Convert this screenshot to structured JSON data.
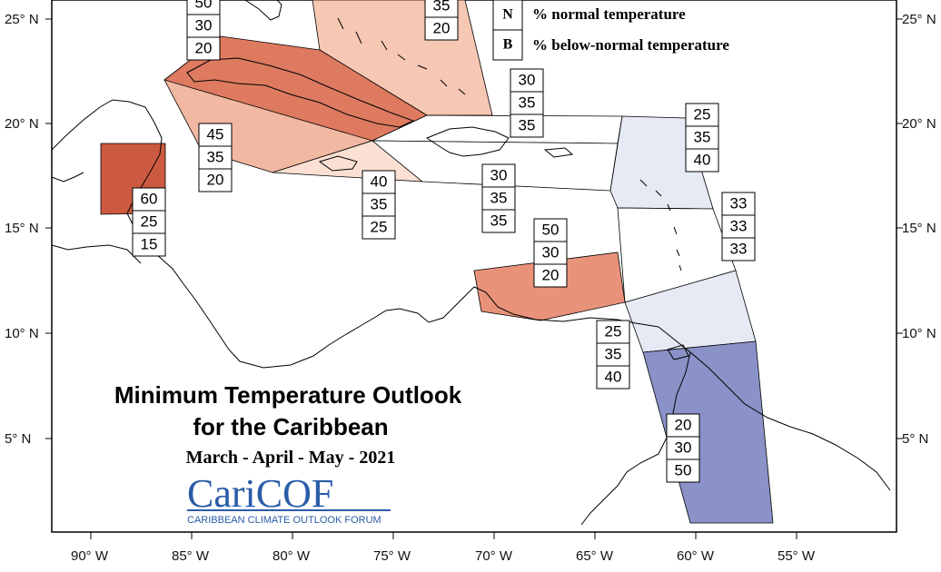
{
  "map": {
    "title_line1": "Minimum Temperature Outlook",
    "title_line2": "for the Caribbean",
    "season": "March - April - May - 2021",
    "logo_text": "CariCOF",
    "logo_subtitle": "CARIBBEAN CLIMATE OUTLOOK FORUM",
    "legend": [
      {
        "key": "N",
        "label": "% normal temperature"
      },
      {
        "key": "B",
        "label": "% below-normal temperature"
      }
    ],
    "lat_labels": [
      "25° N",
      "20° N",
      "15° N",
      "10° N",
      "5° N"
    ],
    "lon_labels": [
      "90° W",
      "85° W",
      "80° W",
      "75° W",
      "70° W",
      "65° W",
      "60° W",
      "55° W"
    ],
    "colors": {
      "above_60": "#cc5a40",
      "above_50": "#e8927a",
      "above_50_cuba": "#dd7a60",
      "above_45": "#f2b9a2",
      "above_40": "#fbe0d3",
      "below_40": "#e6eaf5",
      "below_50": "#8a92c8",
      "neutral": "#ffffff",
      "coast": "#000000"
    },
    "zones": [
      {
        "id": "bahamas",
        "probabilities": [
          "35",
          "20"
        ],
        "hidden_top": true
      },
      {
        "id": "cuba",
        "probabilities": [
          "50",
          "30",
          "20"
        ]
      },
      {
        "id": "western-caribbean",
        "probabilities": [
          "45",
          "35",
          "20"
        ]
      },
      {
        "id": "belize",
        "probabilities": [
          "60",
          "25",
          "15"
        ]
      },
      {
        "id": "jamaica",
        "probabilities": [
          "40",
          "35",
          "25"
        ]
      },
      {
        "id": "turks-caicos",
        "probabilities": [
          "30",
          "35",
          "35"
        ]
      },
      {
        "id": "hispaniola-pr",
        "probabilities": [
          "30",
          "35",
          "35"
        ]
      },
      {
        "id": "leeward-islands",
        "probabilities": [
          "25",
          "35",
          "40"
        ]
      },
      {
        "id": "windward-islands",
        "probabilities": [
          "33",
          "33",
          "33"
        ]
      },
      {
        "id": "abc-islands",
        "probabilities": [
          "50",
          "30",
          "20"
        ]
      },
      {
        "id": "trinidad",
        "probabilities": [
          "25",
          "35",
          "40"
        ]
      },
      {
        "id": "guianas",
        "probabilities": [
          "20",
          "30",
          "50"
        ]
      }
    ]
  }
}
